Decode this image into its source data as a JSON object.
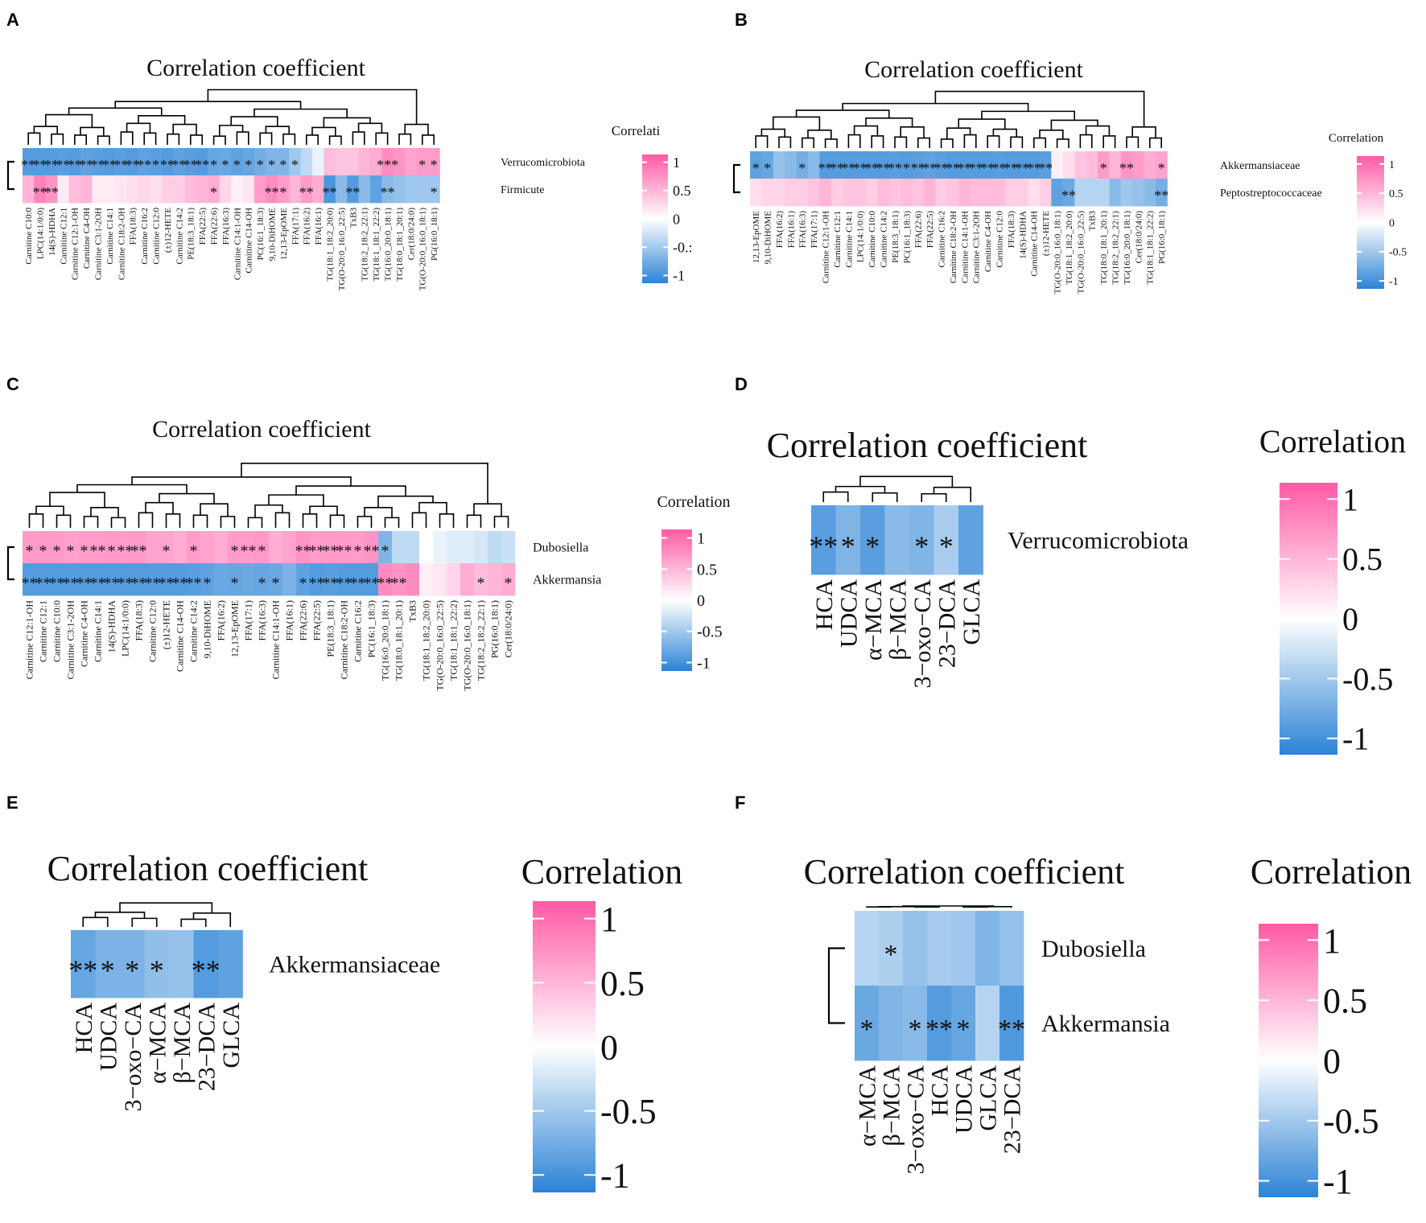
{
  "colors": {
    "neg": "#2b83d6",
    "mid": "#ffffff",
    "pos": "#ff5aa5",
    "star": "#111111",
    "dendro": "#000000"
  },
  "chart_data": [
    {
      "panel": "A",
      "type": "heatmap",
      "title": "Correlation coefficient",
      "legend_title": "Correlati",
      "legend_ticks": [
        "1",
        "0.5",
        "0",
        "-0.:",
        "-1"
      ],
      "rows": [
        "Verrucomicrobiota",
        "Firmicute"
      ],
      "columns": [
        "Carnitine C10:0",
        "LPC(14:1/0:0)",
        "14(S)-HDHA",
        "Carnitine C12:1",
        "Carnitine C12:1-OH",
        "Carnitine C4-OH",
        "Carnitine C3:1-2OH",
        "Carnitine C14:1",
        "Carnitine C18:2-OH",
        "FFA(18:3)",
        "Carnitine C16:2",
        "Carnitine C12:0",
        "(±)12-HETE",
        "Carnitine C14:2",
        "PE(18:3_18:1)",
        "FFA(22:5)",
        "FFA(22:6)",
        "FFA(16:3)",
        "Carnitine C14:1-OH",
        "Carnitine C14-OH",
        "PC(16:1_18:3)",
        "9,10-DiHOME",
        "12,13-EpOME",
        "FFA(17:1)",
        "FFA(16:2)",
        "FFA(16:1)",
        "TG(18:1_18:2_20:0)",
        "TG(O-20:0_16:0_22:5)",
        "TxB3",
        "TG(18:2_18:2_22:1)",
        "TG(18:1_18:1_22:2)",
        "TG(16:0_20:0_18:1)",
        "TG(18:0_18:1_20:1)",
        "Cer(18:0/24:0)",
        "TG(O-20:0_16:0_18:1)",
        "PG(16:0_18:1)"
      ],
      "values": [
        [
          -0.8,
          -0.8,
          -0.8,
          -0.78,
          -0.8,
          -0.75,
          -0.78,
          -0.8,
          -0.78,
          -0.8,
          -0.75,
          -0.78,
          -0.8,
          -0.75,
          -0.78,
          -0.8,
          -0.72,
          -0.7,
          -0.75,
          -0.72,
          -0.65,
          -0.6,
          -0.6,
          -0.45,
          -0.3,
          -0.1,
          0.4,
          0.35,
          0.35,
          0.45,
          0.5,
          0.7,
          0.65,
          0.55,
          0.6,
          0.6
        ],
        [
          0.45,
          0.75,
          0.65,
          0.12,
          0.4,
          0.45,
          0.12,
          0.12,
          0.15,
          0.2,
          0.25,
          0.2,
          0.3,
          0.3,
          0.4,
          0.45,
          0.5,
          0.25,
          0.1,
          0.15,
          0.6,
          0.7,
          0.6,
          0.45,
          0.6,
          0.5,
          -0.85,
          -0.55,
          -0.8,
          -0.55,
          -0.75,
          -0.55,
          -0.5,
          -0.45,
          -0.45,
          -0.45
        ]
      ],
      "stars": [
        [
          "**",
          "**",
          "**",
          "**",
          "**",
          "**",
          "**",
          "**",
          "**",
          "**",
          "**",
          "*",
          "**",
          "**",
          "**",
          "**",
          "*",
          "*",
          "*",
          "*",
          "*",
          "*",
          "*",
          "*",
          "",
          "",
          "",
          "",
          "",
          "",
          "",
          "***",
          "",
          "",
          "*",
          "*"
        ],
        [
          "",
          "**",
          "**",
          "",
          "",
          "",
          "",
          "",
          "",
          "",
          "",
          "",
          "",
          "",
          "",
          "",
          "*",
          "",
          "",
          "",
          "",
          "**",
          "*",
          "",
          "**",
          "",
          "**",
          "",
          "**",
          "",
          "",
          "**",
          "",
          "",
          "",
          "*"
        ]
      ],
      "row_dendrogram": "two-rows"
    },
    {
      "panel": "B",
      "type": "heatmap",
      "title": "Correlation coefficient",
      "legend_title": "Correlation",
      "legend_ticks": [
        "1",
        "0.5",
        "0",
        "-0.5",
        "-1"
      ],
      "rows": [
        "Akkermansiaceae",
        "Peptostreptococcaceae"
      ],
      "columns": [
        "12,13-EpOME",
        "9,10-DiHOME",
        "FFA(16:2)",
        "FFA(16:1)",
        "FFA(16:3)",
        "FFA(17:1)",
        "Carnitine C12:1-OH",
        "Carnitine C12:1",
        "Carnitine C14:1",
        "LPC(14:1/0:0)",
        "Carnitine C10:0",
        "Carnitine C14:2",
        "PE(18:3_18:1)",
        "PC(16:1_18:3)",
        "FFA(22:6)",
        "FFA(22:5)",
        "Carnitine C16:2",
        "Carnitine C18:2-OH",
        "Carnitine C14:1-OH",
        "Carnitine C3:1-2OH",
        "Carnitine C4-OH",
        "Carnitine C12:0",
        "FFA(18:3)",
        "14(S)-HDHA",
        "Carnitine C14-OH",
        "(±)12-HETE",
        "TG(O-20:0_16:0_18:1)",
        "TG(18:1_18:2_20:0)",
        "TG(O-20:0_16:0_22:5)",
        "TxB3",
        "TG(18:0_18:1_20:1)",
        "TG(18:2_18:2_22:1)",
        "TG(16:0_20:0_18:1)",
        "Cer(18:0/24:0)",
        "TG(18:1_18:1_22:2)",
        "PG(16:0_18:1)"
      ],
      "values": [
        [
          -0.75,
          -0.72,
          -0.5,
          -0.55,
          -0.65,
          -0.55,
          -0.8,
          -0.8,
          -0.8,
          -0.8,
          -0.8,
          -0.8,
          -0.78,
          -0.8,
          -0.78,
          -0.75,
          -0.78,
          -0.8,
          -0.8,
          -0.8,
          -0.8,
          -0.78,
          -0.8,
          -0.8,
          -0.8,
          -0.78,
          0.1,
          0.2,
          0.35,
          0.4,
          0.6,
          0.45,
          0.65,
          0.6,
          0.5,
          0.55
        ],
        [
          0.2,
          0.25,
          0.25,
          0.3,
          0.3,
          0.35,
          0.45,
          0.3,
          0.35,
          0.35,
          0.3,
          0.4,
          0.35,
          0.4,
          0.35,
          0.45,
          0.3,
          0.35,
          0.45,
          0.4,
          0.4,
          0.4,
          0.3,
          0.3,
          0.2,
          0.3,
          -0.75,
          -0.7,
          -0.35,
          -0.35,
          -0.35,
          -0.55,
          -0.45,
          -0.5,
          -0.55,
          -0.65
        ]
      ],
      "stars": [
        [
          "*",
          "*",
          "",
          "",
          "*",
          "",
          "**",
          "**",
          "**",
          "**",
          "**",
          "**",
          "**",
          "*",
          "**",
          "**",
          "**",
          "**",
          "**",
          "**",
          "**",
          "**",
          "**",
          "**",
          "**",
          "**",
          "",
          "",
          "",
          "",
          "*",
          "",
          "**",
          "",
          "",
          "*"
        ],
        [
          "",
          "",
          "",
          "",
          "",
          "",
          "",
          "",
          "",
          "",
          "",
          "",
          "",
          "",
          "",
          "",
          "",
          "",
          "",
          "",
          "",
          "",
          "",
          "",
          "",
          "",
          "",
          "**",
          "",
          "",
          "",
          "",
          "",
          "",
          "",
          "**"
        ]
      ],
      "row_dendrogram": "two-rows"
    },
    {
      "panel": "C",
      "type": "heatmap",
      "title": "Correlation coefficient",
      "legend_title": "Correlation",
      "legend_ticks": [
        "1",
        "0.5",
        "0",
        "-0.5",
        "-1"
      ],
      "rows": [
        "Dubosiella",
        "Akkermansia"
      ],
      "columns": [
        "Carnitine C12:1-OH",
        "Carnitine C12:1",
        "Carnitine C10:0",
        "Carnitine C3:1-2OH",
        "Carnitine C4-OH",
        "Carnitine C14:1",
        "14(S)-HDHA",
        "LPC(14:1/0:0)",
        "FFA(18:3)",
        "Carnitine C12:0",
        "(±)12-HETE",
        "Carnitine C14-OH",
        "Carnitine C14:2",
        "9,10-DiHOME",
        "FFA(16:2)",
        "12,13-EpOME",
        "FFA(17:1)",
        "FFA(16:3)",
        "Carnitine C14:1-OH",
        "FFA(16:1)",
        "FFA(22:6)",
        "FFA(22:5)",
        "PE(18:3_18:1)",
        "Carnitine C18:2-OH",
        "Carnitine C16:2",
        "PC(16:1_18:3)",
        "TG(16:0_20:0_18:1)",
        "TG(18:0_18:1_20:1)",
        "TxB3",
        "TG(18:1_18:2_20:0)",
        "TG(O-20:0_16:0_22:5)",
        "TG(18:1_18:1_22:2)",
        "TG(O-20:0_16:0_18:1)",
        "TG(18:2_18:2_22:1)",
        "PG(16:0_18:1)",
        "Cer(18:0/24:0)"
      ],
      "values": [
        [
          0.6,
          0.62,
          0.6,
          0.58,
          0.6,
          0.6,
          0.62,
          0.6,
          0.62,
          0.55,
          0.55,
          0.5,
          0.6,
          0.55,
          0.5,
          0.6,
          0.6,
          0.62,
          0.5,
          0.55,
          0.65,
          0.6,
          0.62,
          0.6,
          0.6,
          0.65,
          -0.6,
          -0.3,
          -0.3,
          0.0,
          -0.1,
          -0.15,
          -0.15,
          -0.2,
          -0.3,
          -0.25
        ],
        [
          -0.8,
          -0.8,
          -0.8,
          -0.8,
          -0.8,
          -0.8,
          -0.8,
          -0.8,
          -0.8,
          -0.8,
          -0.8,
          -0.8,
          -0.78,
          -0.75,
          -0.7,
          -0.72,
          -0.7,
          -0.72,
          -0.7,
          -0.62,
          -0.75,
          -0.8,
          -0.78,
          -0.8,
          -0.8,
          -0.8,
          0.7,
          0.65,
          0.7,
          0.1,
          0.15,
          0.25,
          0.5,
          0.4,
          0.45,
          0.5
        ]
      ],
      "stars": [
        [
          "*",
          "*",
          "*",
          "*",
          "*",
          "**",
          "*",
          "**",
          "**",
          "",
          "*",
          "",
          "*",
          "",
          "",
          "*",
          "**",
          "*",
          "",
          "",
          "**",
          "**",
          "**",
          "**",
          "*",
          "**",
          "*",
          "",
          "",
          "",
          "",
          "",
          "",
          "",
          "",
          ""
        ],
        [
          "**",
          "**",
          "**",
          "**",
          "**",
          "**",
          "**",
          "**",
          "**",
          "**",
          "**",
          "**",
          "**",
          "*",
          "",
          "*",
          "",
          "*",
          "*",
          "",
          "*",
          "**",
          "**",
          "**",
          "**",
          "**",
          "**",
          "**",
          "",
          "",
          "",
          "",
          "",
          "*",
          "",
          "*"
        ]
      ],
      "row_dendrogram": "two-rows"
    },
    {
      "panel": "D",
      "type": "heatmap",
      "title": "Correlation coefficient",
      "legend_title": "Correlation",
      "legend_ticks": [
        "1",
        "0.5",
        "0",
        "-0.5",
        "-1"
      ],
      "rows": [
        "Verrucomicrobiota"
      ],
      "columns": [
        "HCA",
        "UDCA",
        "α−MCA",
        "β−MCA",
        "3−oxo−CA",
        "23−DCA",
        "GLCA"
      ],
      "values": [
        [
          -0.78,
          -0.6,
          -0.78,
          -0.55,
          -0.6,
          -0.4,
          -0.75
        ]
      ],
      "stars": [
        [
          "**",
          "*",
          "*",
          "",
          "*",
          "*",
          ""
        ]
      ]
    },
    {
      "panel": "E",
      "type": "heatmap",
      "title": "Correlation coefficient",
      "legend_title": "Correlation",
      "legend_ticks": [
        "1",
        "0.5",
        "0",
        "-0.5",
        "-1"
      ],
      "rows": [
        "Akkermansiaceae"
      ],
      "columns": [
        "HCA",
        "UDCA",
        "3−oxo−CA",
        "α−MCA",
        "β−MCA",
        "23−DCA",
        "GLCA"
      ],
      "values": [
        [
          -0.72,
          -0.62,
          -0.62,
          -0.52,
          -0.5,
          -0.8,
          -0.75
        ]
      ],
      "stars": [
        [
          "**",
          "*",
          "*",
          "*",
          "",
          "**",
          ""
        ]
      ]
    },
    {
      "panel": "F",
      "type": "heatmap",
      "title": "Correlation coefficient",
      "legend_title": "Correlation",
      "legend_ticks": [
        "1",
        "0.5",
        "0",
        "-0.5",
        "-1"
      ],
      "rows": [
        "Dubosiella",
        "Akkermansia"
      ],
      "columns": [
        "α−MCA",
        "β−MCA",
        "3−oxo−CA",
        "HCA",
        "UDCA",
        "GLCA",
        "23−DCA"
      ],
      "values": [
        [
          -0.35,
          -0.38,
          -0.5,
          -0.42,
          -0.45,
          -0.6,
          -0.5
        ],
        [
          -0.7,
          -0.6,
          -0.55,
          -0.8,
          -0.72,
          -0.35,
          -0.82
        ]
      ],
      "stars": [
        [
          "",
          "*",
          "",
          "",
          "",
          "",
          ""
        ],
        [
          "*",
          "",
          "*",
          "**",
          "*",
          "",
          "**"
        ]
      ],
      "row_dendrogram": "two-rows"
    }
  ]
}
